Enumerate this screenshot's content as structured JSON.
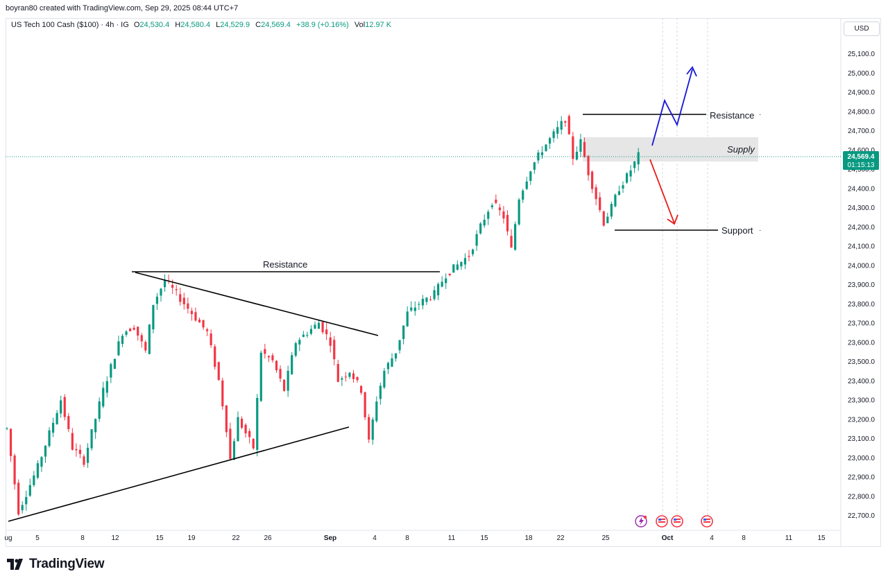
{
  "header": {
    "credit": "boyran80 created with TradingView.com, Sep 29, 2025 08:44 UTC+7"
  },
  "legend": {
    "symbol": "US Tech 100 Cash ($100) · 4h · IG",
    "open_label": "O",
    "open": "24,530.4",
    "high_label": "H",
    "high": "24,580.4",
    "low_label": "L",
    "low": "24,529.9",
    "close_label": "C",
    "close": "24,569.4",
    "change": "+38.9 (+0.16%)",
    "vol_label": "Vol",
    "vol": "12.97 K"
  },
  "price_axis": {
    "currency": "USD",
    "last_price": "24,569.4",
    "countdown": "01:15:13"
  },
  "brand": {
    "name": "TradingView"
  },
  "colors": {
    "up": "#089981",
    "down": "#f23645",
    "blue_arrow": "#1515d6",
    "red_arrow": "#e81d1d",
    "supply_zone": "#e6e6e6",
    "lines": "#000000",
    "last_price_line": "#089981"
  },
  "annotations": {
    "resistance_upper": "Resistance",
    "supply": "Supply",
    "support": "Support",
    "resistance_lower": "Resistance"
  },
  "chart_data": {
    "type": "candlestick",
    "title": "US Tech 100 Cash ($100)",
    "timeframe": "4h",
    "ylim": [
      22650,
      25200
    ],
    "y_ticks": [
      22700,
      22800,
      22900,
      23000,
      23100,
      23200,
      23300,
      23400,
      23500,
      23600,
      23700,
      23800,
      23900,
      24000,
      24100,
      24200,
      24300,
      24400,
      24500,
      24600,
      24700,
      24800,
      24900,
      25000,
      25100
    ],
    "y_tick_labels": [
      "22,700.0",
      "22,800.0",
      "22,900.0",
      "23,000.0",
      "23,100.0",
      "23,200.0",
      "23,300.0",
      "23,400.0",
      "23,500.0",
      "23,600.0",
      "23,700.0",
      "23,800.0",
      "23,900.0",
      "24,000.0",
      "24,100.0",
      "24,200.0",
      "24,300.0",
      "24,400.0",
      "24,500.0",
      "24,600.0",
      "24,700.0",
      "24,800.0",
      "24,900.0",
      "25,000.0",
      "25,100.0"
    ],
    "x_tick_labels": [
      "ug",
      "5",
      "8",
      "12",
      "15",
      "19",
      "22",
      "26",
      "Sep",
      "4",
      "8",
      "11",
      "15",
      "18",
      "22",
      "25",
      "Oct",
      "4",
      "8",
      "11",
      "15"
    ],
    "grid": false,
    "price_path": [
      [
        0,
        23150
      ],
      [
        3,
        22720
      ],
      [
        8,
        22950
      ],
      [
        14,
        23300
      ],
      [
        17,
        23050
      ],
      [
        20,
        22980
      ],
      [
        25,
        23350
      ],
      [
        30,
        23650
      ],
      [
        33,
        23680
      ],
      [
        36,
        23550
      ],
      [
        38,
        23800
      ],
      [
        41,
        23920
      ],
      [
        44,
        23850
      ],
      [
        48,
        23750
      ],
      [
        52,
        23650
      ],
      [
        55,
        23400
      ],
      [
        57,
        23150
      ],
      [
        58,
        22990
      ],
      [
        60,
        23200
      ],
      [
        64,
        23050
      ],
      [
        66,
        23550
      ],
      [
        69,
        23500
      ],
      [
        72,
        23350
      ],
      [
        75,
        23600
      ],
      [
        78,
        23650
      ],
      [
        81,
        23700
      ],
      [
        84,
        23600
      ],
      [
        86,
        23400
      ],
      [
        89,
        23450
      ],
      [
        92,
        23350
      ],
      [
        94,
        23080
      ],
      [
        96,
        23300
      ],
      [
        98,
        23450
      ],
      [
        101,
        23550
      ],
      [
        104,
        23750
      ],
      [
        107,
        23800
      ],
      [
        111,
        23850
      ],
      [
        114,
        23950
      ],
      [
        117,
        24000
      ],
      [
        120,
        24050
      ],
      [
        123,
        24200
      ],
      [
        126,
        24330
      ],
      [
        129,
        24250
      ],
      [
        131,
        24080
      ],
      [
        133,
        24350
      ],
      [
        136,
        24500
      ],
      [
        139,
        24600
      ],
      [
        142,
        24680
      ],
      [
        145,
        24760
      ],
      [
        147,
        24560
      ],
      [
        149,
        24640
      ],
      [
        151,
        24480
      ],
      [
        153,
        24350
      ],
      [
        155,
        24220
      ],
      [
        157,
        24300
      ],
      [
        159,
        24400
      ],
      [
        161,
        24460
      ],
      [
        163,
        24530
      ],
      [
        164,
        24569
      ]
    ],
    "events": [
      "Lightning",
      "US",
      "US",
      "US"
    ]
  }
}
